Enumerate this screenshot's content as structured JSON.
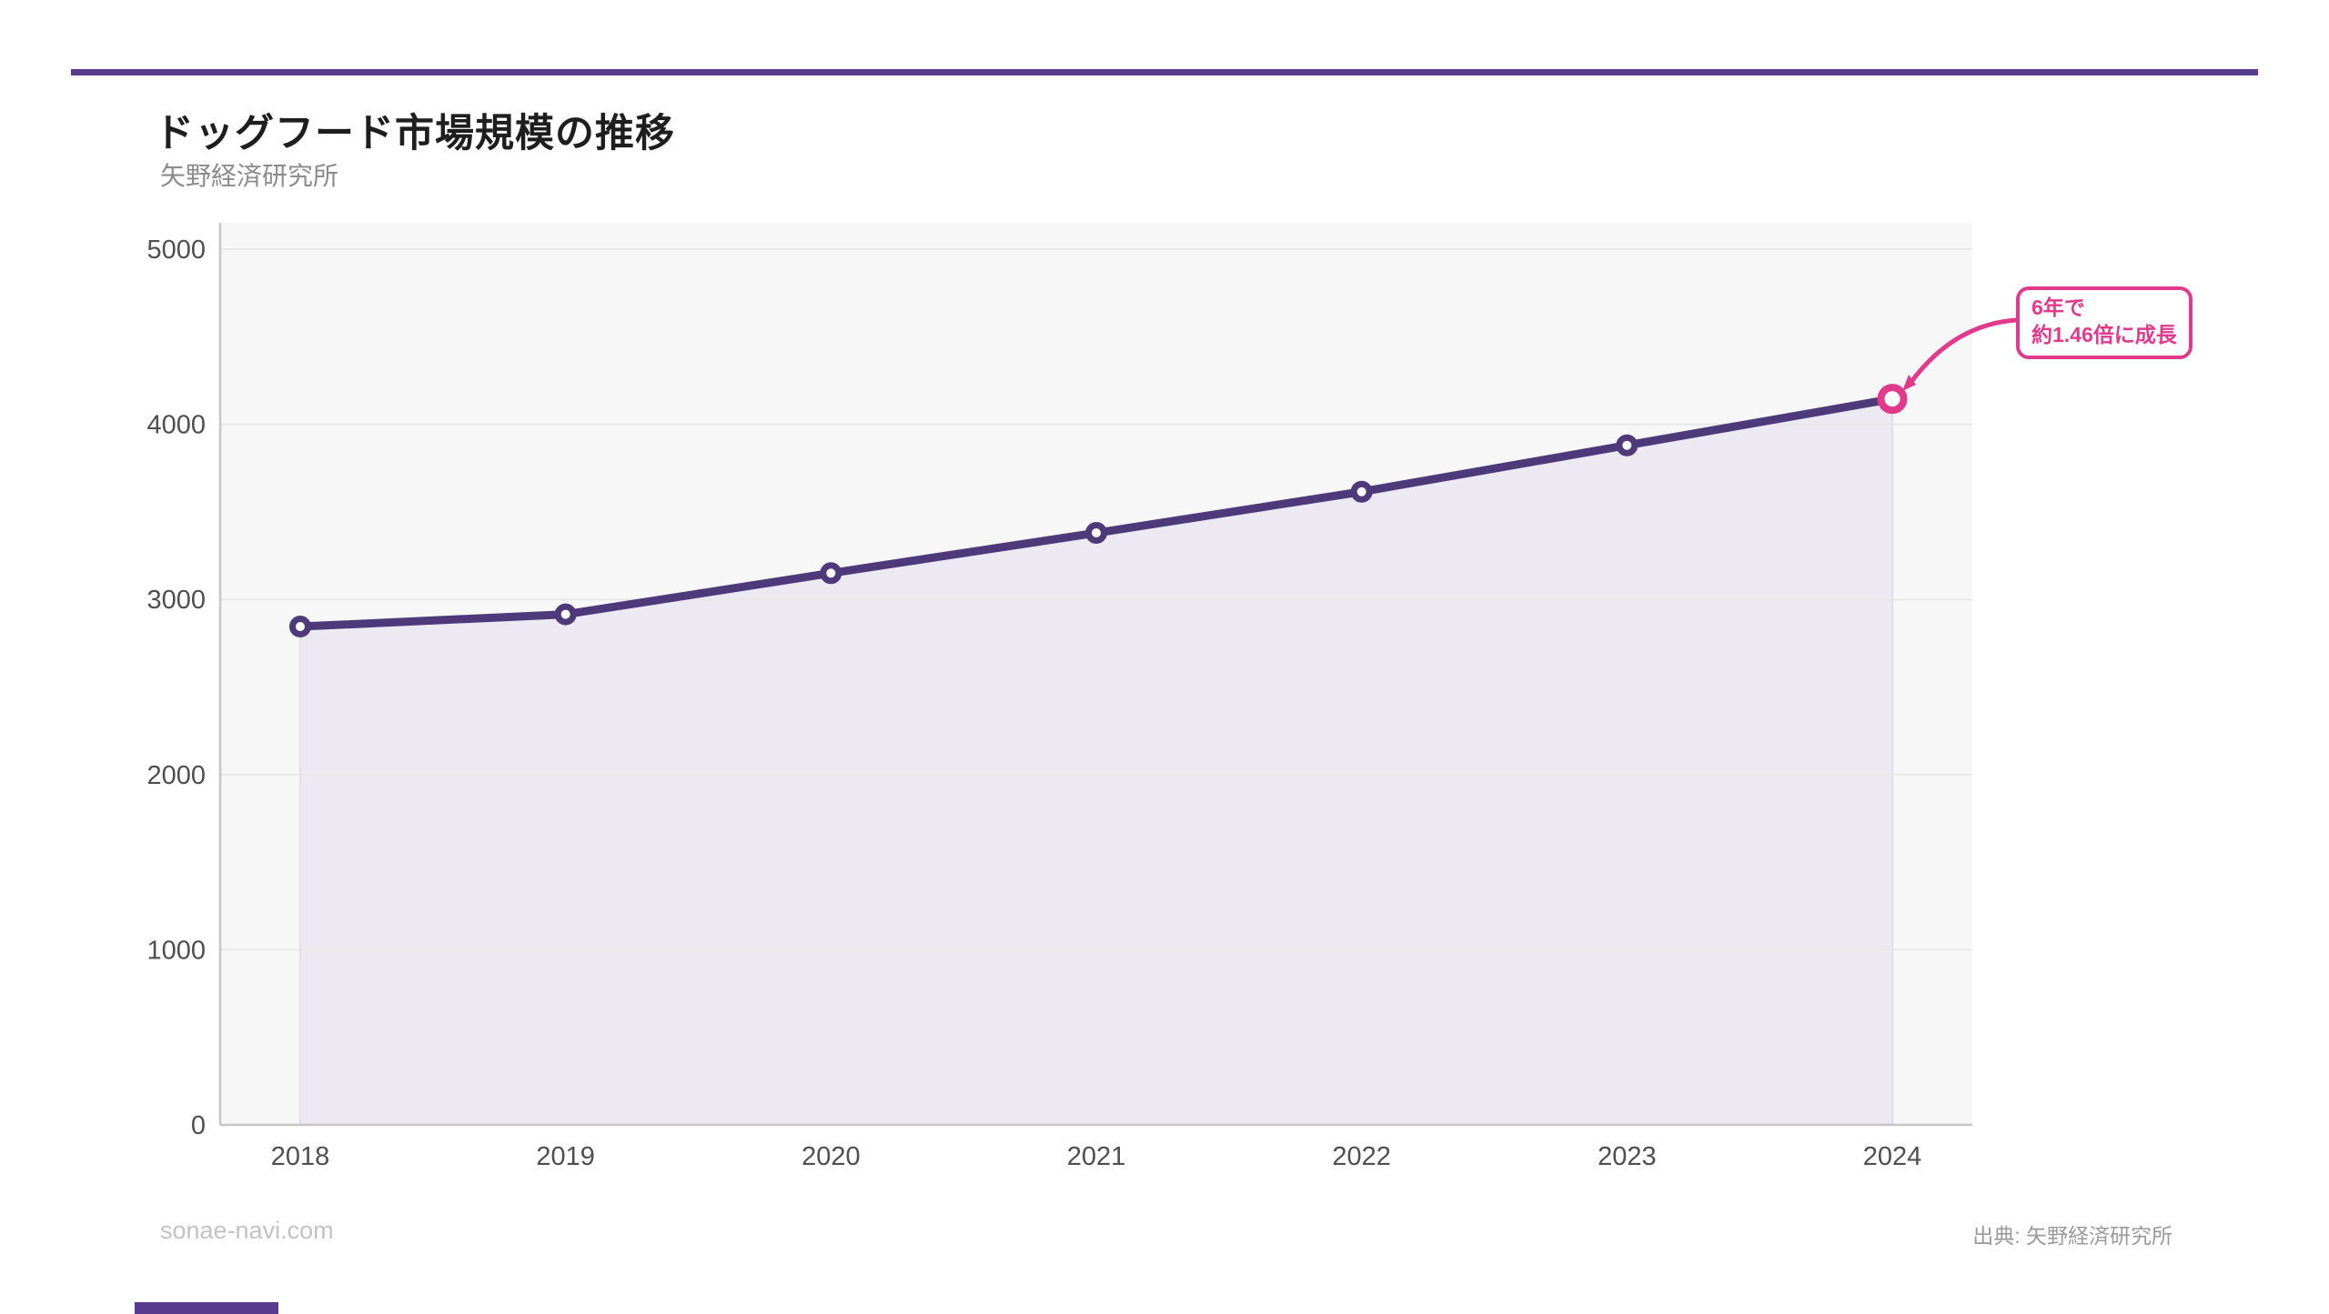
{
  "header": {
    "title": "ドッグフード市場規模の推移",
    "subtitle": "矢野経済研究所"
  },
  "annotation": {
    "line1": "6年で",
    "line2": "約1.46倍に成長"
  },
  "footer": {
    "watermark": "sonae-navi.com",
    "source": "出典: 矢野経済研究所"
  },
  "colors": {
    "rule_purple": "#583c8d",
    "line_purple": "#4e3a7b",
    "marker_pink": "#e13a8c",
    "area_fill": "#ece9f2",
    "area_edge": "#e1dde9",
    "plot_background": "#f7f7f8",
    "gridline": "#e8e8e8",
    "axis_line": "#c6c6c6",
    "tick_label": "#4f4f4f",
    "title_text": "#1e1e1e",
    "subtitle_text": "#8b8b8b",
    "watermark_text": "#c3c3c3",
    "source_text": "#9a9a9a"
  },
  "chart_data": {
    "type": "area",
    "categories": [
      "2018",
      "2019",
      "2020",
      "2021",
      "2022",
      "2023",
      "2024"
    ],
    "values": [
      2845,
      2915,
      3150,
      3380,
      3615,
      3880,
      4145
    ],
    "title": "ドッグフード市場規模の推移",
    "subtitle": "矢野経済研究所",
    "xlabel": "",
    "ylabel": "",
    "ylim": [
      0,
      5000
    ],
    "yticks": [
      0,
      1000,
      2000,
      3000,
      4000,
      5000
    ],
    "grid": true,
    "legend": false,
    "highlight_last_point": true,
    "annotation": "6年で約1.46倍に成長"
  }
}
